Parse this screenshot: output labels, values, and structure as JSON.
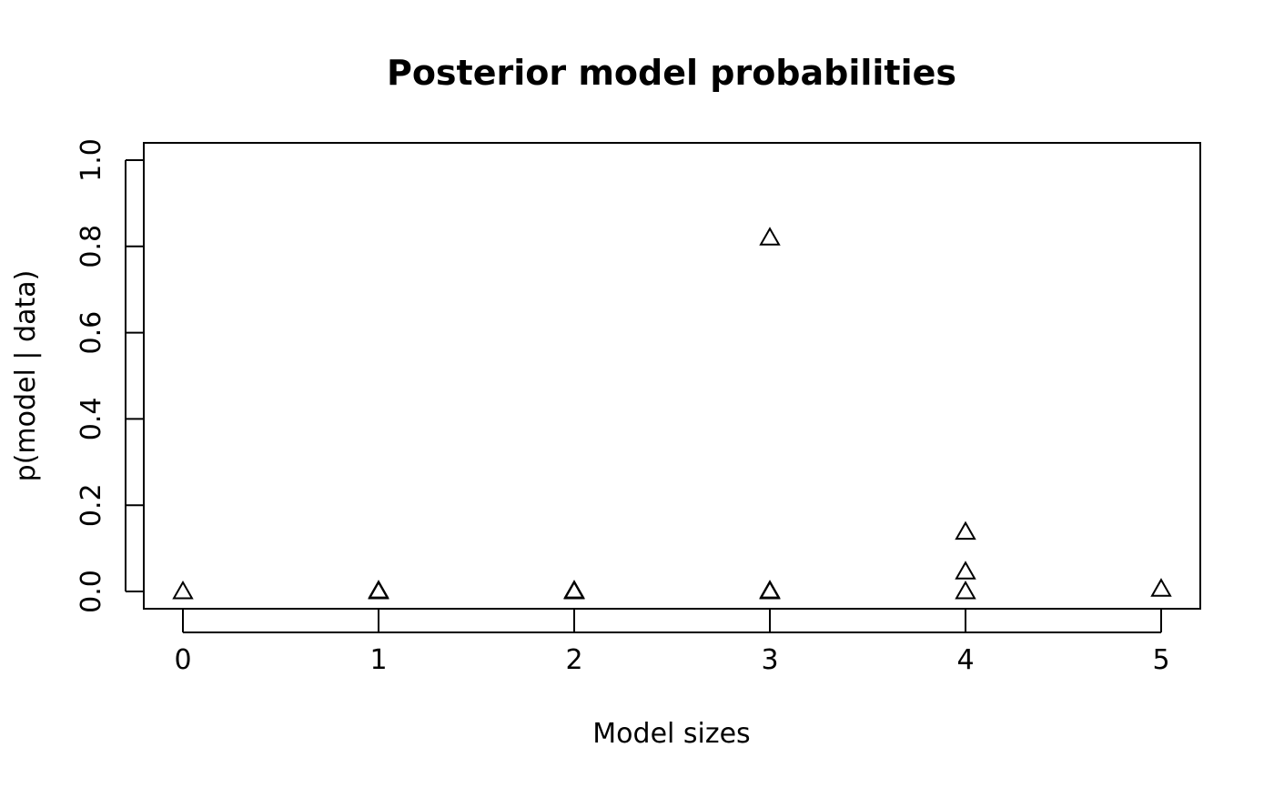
{
  "chart_data": {
    "type": "scatter",
    "title": "Posterior model probabilities",
    "xlabel": "Model sizes",
    "ylabel": "p(model | data)",
    "xlim": [
      -0.2,
      5.2
    ],
    "ylim": [
      -0.04,
      1.04
    ],
    "x_ticks": [
      0,
      1,
      2,
      3,
      4,
      5
    ],
    "x_tick_labels": [
      "0",
      "1",
      "2",
      "3",
      "4",
      "5"
    ],
    "y_ticks": [
      0.0,
      0.2,
      0.4,
      0.6,
      0.8,
      1.0
    ],
    "y_tick_labels": [
      "0.0",
      "0.2",
      "0.4",
      "0.6",
      "0.8",
      "1.0"
    ],
    "grid": false,
    "marker": "open-triangle",
    "points": [
      {
        "x": 0,
        "y": 0.0
      },
      {
        "x": 1,
        "y": 0.0
      },
      {
        "x": 1,
        "y": 0.002
      },
      {
        "x": 2,
        "y": 0.0
      },
      {
        "x": 2,
        "y": 0.001
      },
      {
        "x": 2,
        "y": 0.002
      },
      {
        "x": 3,
        "y": 0.0
      },
      {
        "x": 3,
        "y": 0.002
      },
      {
        "x": 3,
        "y": 0.82
      },
      {
        "x": 4,
        "y": 0.0
      },
      {
        "x": 4,
        "y": 0.046
      },
      {
        "x": 4,
        "y": 0.138
      },
      {
        "x": 5,
        "y": 0.006
      }
    ]
  }
}
